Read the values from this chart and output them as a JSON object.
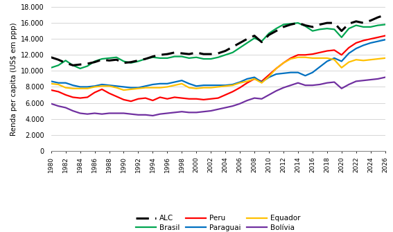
{
  "years": [
    1980,
    1981,
    1982,
    1983,
    1984,
    1985,
    1986,
    1987,
    1988,
    1989,
    1990,
    1991,
    1992,
    1993,
    1994,
    1995,
    1996,
    1997,
    1998,
    1999,
    2000,
    2001,
    2002,
    2003,
    2004,
    2005,
    2006,
    2007,
    2008,
    2009,
    2010,
    2011,
    2012,
    2013,
    2014,
    2015,
    2016,
    2017,
    2018,
    2019,
    2020,
    2021,
    2022,
    2023,
    2024,
    2025,
    2026
  ],
  "ALC": [
    11700,
    11400,
    11000,
    10700,
    10800,
    10900,
    11100,
    11400,
    11300,
    11400,
    11000,
    11100,
    11300,
    11500,
    11800,
    12000,
    12100,
    12300,
    12200,
    12100,
    12300,
    12100,
    12100,
    12200,
    12500,
    13000,
    13500,
    14000,
    14400,
    13600,
    14500,
    15000,
    15500,
    15800,
    16000,
    15700,
    15500,
    15800,
    16000,
    16000,
    15000,
    15900,
    16200,
    16000,
    16300,
    16700,
    17000
  ],
  "Brasil": [
    10400,
    10700,
    11300,
    10700,
    10300,
    10600,
    11200,
    11500,
    11600,
    11700,
    11200,
    11000,
    11200,
    11500,
    11700,
    11600,
    11600,
    11800,
    11800,
    11600,
    11700,
    11500,
    11500,
    11700,
    12000,
    12300,
    12900,
    13500,
    14100,
    13700,
    14700,
    15300,
    15800,
    15900,
    16000,
    15600,
    15000,
    15200,
    15300,
    15200,
    14200,
    15300,
    15700,
    15500,
    15500,
    15700,
    15800
  ],
  "Peru": [
    7600,
    7400,
    7000,
    6700,
    6600,
    6700,
    7300,
    7700,
    7200,
    6800,
    6400,
    6200,
    6500,
    6600,
    6300,
    6700,
    6500,
    6700,
    6600,
    6500,
    6500,
    6400,
    6500,
    6600,
    7000,
    7400,
    7900,
    8500,
    9000,
    8700,
    9500,
    10300,
    11000,
    11600,
    12000,
    12000,
    12100,
    12300,
    12500,
    12600,
    12000,
    12900,
    13500,
    13800,
    14000,
    14200,
    14400
  ],
  "Paraguai": [
    8700,
    8500,
    8500,
    8200,
    8000,
    8000,
    8100,
    8300,
    8200,
    8100,
    8000,
    7900,
    7900,
    8100,
    8300,
    8400,
    8400,
    8600,
    8800,
    8400,
    8100,
    8200,
    8200,
    8200,
    8200,
    8300,
    8600,
    9000,
    9200,
    8600,
    9200,
    9600,
    9700,
    9800,
    9800,
    9400,
    9800,
    10500,
    11200,
    11600,
    11200,
    12200,
    12800,
    13200,
    13500,
    13700,
    13900
  ],
  "Equador": [
    8400,
    8300,
    7900,
    7800,
    7800,
    7800,
    8000,
    8100,
    8100,
    7900,
    7600,
    7700,
    7800,
    7900,
    7900,
    7900,
    8000,
    8200,
    8400,
    7900,
    7800,
    7900,
    7900,
    8000,
    8100,
    8200,
    8500,
    8700,
    9000,
    8500,
    9300,
    10300,
    11000,
    11500,
    11700,
    11700,
    11600,
    11600,
    11600,
    11400,
    10400,
    11100,
    11400,
    11300,
    11400,
    11500,
    11600
  ],
  "Bolivia": [
    5900,
    5600,
    5400,
    5000,
    4700,
    4600,
    4700,
    4600,
    4700,
    4700,
    4700,
    4600,
    4500,
    4500,
    4400,
    4600,
    4700,
    4800,
    4900,
    4800,
    4800,
    4900,
    5000,
    5200,
    5400,
    5600,
    5900,
    6300,
    6600,
    6500,
    7000,
    7500,
    7900,
    8200,
    8500,
    8200,
    8200,
    8300,
    8500,
    8600,
    7800,
    8300,
    8700,
    8800,
    8900,
    9000,
    9200
  ],
  "ylabel": "Renda per capita (US$ em ppp)",
  "ylim": [
    0,
    18000
  ],
  "yticks": [
    0,
    2000,
    4000,
    6000,
    8000,
    10000,
    12000,
    14000,
    16000,
    18000
  ],
  "ytick_labels": [
    "0",
    "2.000",
    "4.000",
    "6.000",
    "8.000",
    "10.000",
    "12.000",
    "14.000",
    "16.000",
    "18.000"
  ],
  "colors": {
    "ALC": "#000000",
    "Brasil": "#00a550",
    "Peru": "#ff0000",
    "Paraguai": "#0070c0",
    "Equador": "#ffc000",
    "Bolivia": "#7030a0"
  }
}
